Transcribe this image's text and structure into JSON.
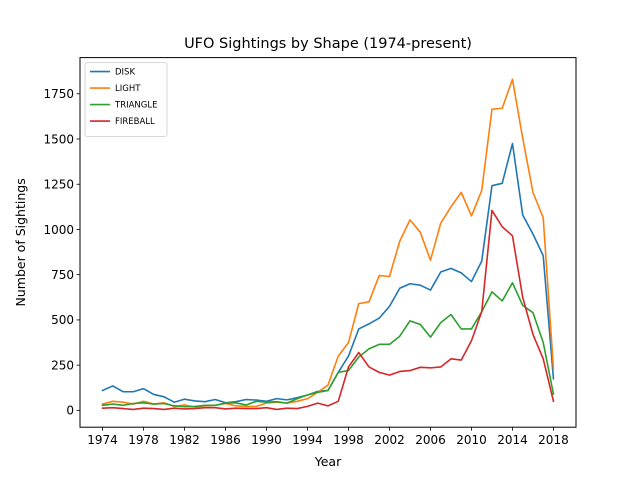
{
  "chart_data": {
    "type": "line",
    "title": "UFO Sightings by Shape (1974-present)",
    "xlabel": "Year",
    "ylabel": "Number of Sightings",
    "xlim": [
      1971.8,
      2020.2
    ],
    "ylim": [
      -93,
      1950
    ],
    "xticks": [
      "1974",
      "1978",
      "1982",
      "1986",
      "1990",
      "1994",
      "1998",
      "2002",
      "2006",
      "2010",
      "2014",
      "2018"
    ],
    "yticks": [
      "0",
      "250",
      "500",
      "750",
      "1000",
      "1250",
      "1500",
      "1750"
    ],
    "grid": false,
    "legend_position": "upper-left",
    "x": [
      1974,
      1975,
      1976,
      1977,
      1978,
      1979,
      1980,
      1981,
      1982,
      1983,
      1984,
      1985,
      1986,
      1987,
      1988,
      1989,
      1990,
      1991,
      1992,
      1993,
      1994,
      1995,
      1996,
      1997,
      1998,
      1999,
      2000,
      2001,
      2002,
      2003,
      2004,
      2005,
      2006,
      2007,
      2008,
      2009,
      2010,
      2011,
      2012,
      2013,
      2014,
      2015,
      2016,
      2017,
      2018
    ],
    "series": [
      {
        "name": "DISK",
        "color": "#1f77b4",
        "values": [
          110,
          135,
          103,
          103,
          120,
          88,
          75,
          45,
          62,
          52,
          48,
          60,
          42,
          48,
          60,
          57,
          50,
          65,
          58,
          70,
          85,
          105,
          110,
          210,
          300,
          450,
          478,
          510,
          575,
          675,
          700,
          692,
          665,
          765,
          785,
          760,
          712,
          825,
          1242,
          1255,
          1475,
          1080,
          975,
          855,
          175
        ]
      },
      {
        "name": "LIGHT",
        "color": "#ff7f0e",
        "values": [
          35,
          50,
          45,
          35,
          50,
          35,
          42,
          22,
          30,
          18,
          25,
          28,
          38,
          25,
          22,
          22,
          40,
          45,
          40,
          50,
          65,
          100,
          140,
          300,
          375,
          590,
          600,
          745,
          740,
          935,
          1053,
          985,
          830,
          1035,
          1125,
          1205,
          1075,
          1215,
          1665,
          1670,
          1830,
          1505,
          1205,
          1065,
          230
        ]
      },
      {
        "name": "TRIANGLE",
        "color": "#2ca02c",
        "values": [
          28,
          35,
          28,
          38,
          42,
          35,
          38,
          25,
          20,
          22,
          28,
          28,
          40,
          42,
          30,
          50,
          45,
          48,
          40,
          65,
          85,
          100,
          110,
          210,
          220,
          295,
          340,
          365,
          365,
          410,
          495,
          475,
          405,
          485,
          530,
          450,
          450,
          545,
          655,
          605,
          705,
          580,
          540,
          375,
          90
        ]
      },
      {
        "name": "FIREBALL",
        "color": "#d62728",
        "values": [
          12,
          15,
          10,
          5,
          12,
          10,
          5,
          12,
          8,
          10,
          15,
          15,
          8,
          12,
          10,
          10,
          15,
          5,
          12,
          10,
          22,
          40,
          25,
          50,
          240,
          320,
          240,
          210,
          195,
          215,
          220,
          238,
          235,
          240,
          285,
          278,
          385,
          545,
          1105,
          1015,
          965,
          625,
          420,
          285,
          50
        ]
      }
    ]
  }
}
